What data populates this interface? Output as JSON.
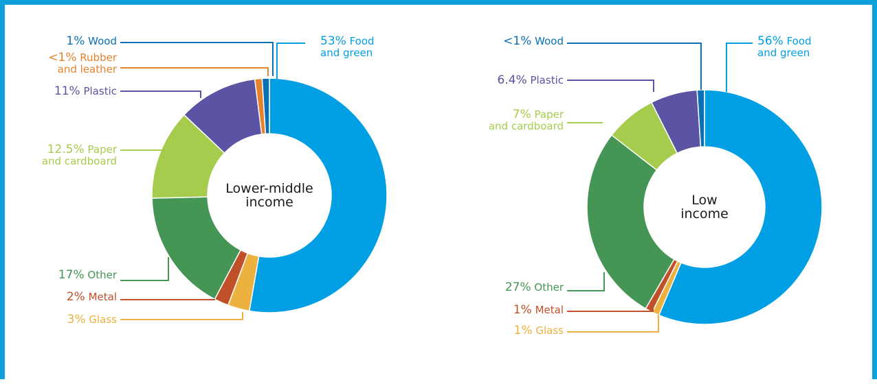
{
  "chart_data": [
    {
      "type": "pie",
      "title": "Lower-middle income",
      "title_lines": [
        "Lower-middle",
        "income"
      ],
      "slices": [
        {
          "key": "food",
          "label": "Food and green",
          "value": 53,
          "pct_text": "53%",
          "name_lines": [
            " Food",
            "and green"
          ],
          "color": "#009fe3"
        },
        {
          "key": "glass",
          "label": "Glass",
          "value": 3,
          "pct_text": "3%",
          "name_lines": [
            " Glass"
          ],
          "color": "#ecb13f"
        },
        {
          "key": "metal",
          "label": "Metal",
          "value": 2,
          "pct_text": "2%",
          "name_lines": [
            " Metal"
          ],
          "color": "#c0502a"
        },
        {
          "key": "other",
          "label": "Other",
          "value": 17,
          "pct_text": "17%",
          "name_lines": [
            " Other"
          ],
          "color": "#459554"
        },
        {
          "key": "paper",
          "label": "Paper and cardboard",
          "value": 12.5,
          "pct_text": "12.5%",
          "name_lines": [
            " Paper",
            "and cardboard"
          ],
          "color": "#a5cc4c"
        },
        {
          "key": "plastic",
          "label": "Plastic",
          "value": 11,
          "pct_text": "11%",
          "name_lines": [
            " Plastic"
          ],
          "color": "#5b53a3"
        },
        {
          "key": "rubber",
          "label": "Rubber and leather",
          "value": 1,
          "pct_text": "<1%",
          "name_lines": [
            " Rubber",
            "and leather"
          ],
          "color": "#e5822b"
        },
        {
          "key": "wood",
          "label": "Wood",
          "value": 1,
          "pct_text": "1%",
          "name_lines": [
            " Wood"
          ],
          "color": "#0a70b5"
        }
      ]
    },
    {
      "type": "pie",
      "title": "Low income",
      "title_lines": [
        "Low",
        "income"
      ],
      "slices": [
        {
          "key": "food",
          "label": "Food and green",
          "value": 56,
          "pct_text": "56%",
          "name_lines": [
            " Food",
            "and green"
          ],
          "color": "#009fe3"
        },
        {
          "key": "glass",
          "label": "Glass",
          "value": 1,
          "pct_text": "1%",
          "name_lines": [
            " Glass"
          ],
          "color": "#ecb13f"
        },
        {
          "key": "metal",
          "label": "Metal",
          "value": 1,
          "pct_text": "1%",
          "name_lines": [
            " Metal"
          ],
          "color": "#c0502a"
        },
        {
          "key": "other",
          "label": "Other",
          "value": 27,
          "pct_text": "27%",
          "name_lines": [
            " Other"
          ],
          "color": "#459554"
        },
        {
          "key": "paper",
          "label": "Paper and cardboard",
          "value": 7,
          "pct_text": "7%",
          "name_lines": [
            " Paper",
            "and cardboard"
          ],
          "color": "#a5cc4c"
        },
        {
          "key": "plastic",
          "label": "Plastic",
          "value": 6.4,
          "pct_text": "6.4%",
          "name_lines": [
            " Plastic"
          ],
          "color": "#5b53a3"
        },
        {
          "key": "wood",
          "label": "Wood",
          "value": 1,
          "pct_text": "<1%",
          "name_lines": [
            " Wood"
          ],
          "color": "#0a70b5"
        }
      ]
    }
  ]
}
